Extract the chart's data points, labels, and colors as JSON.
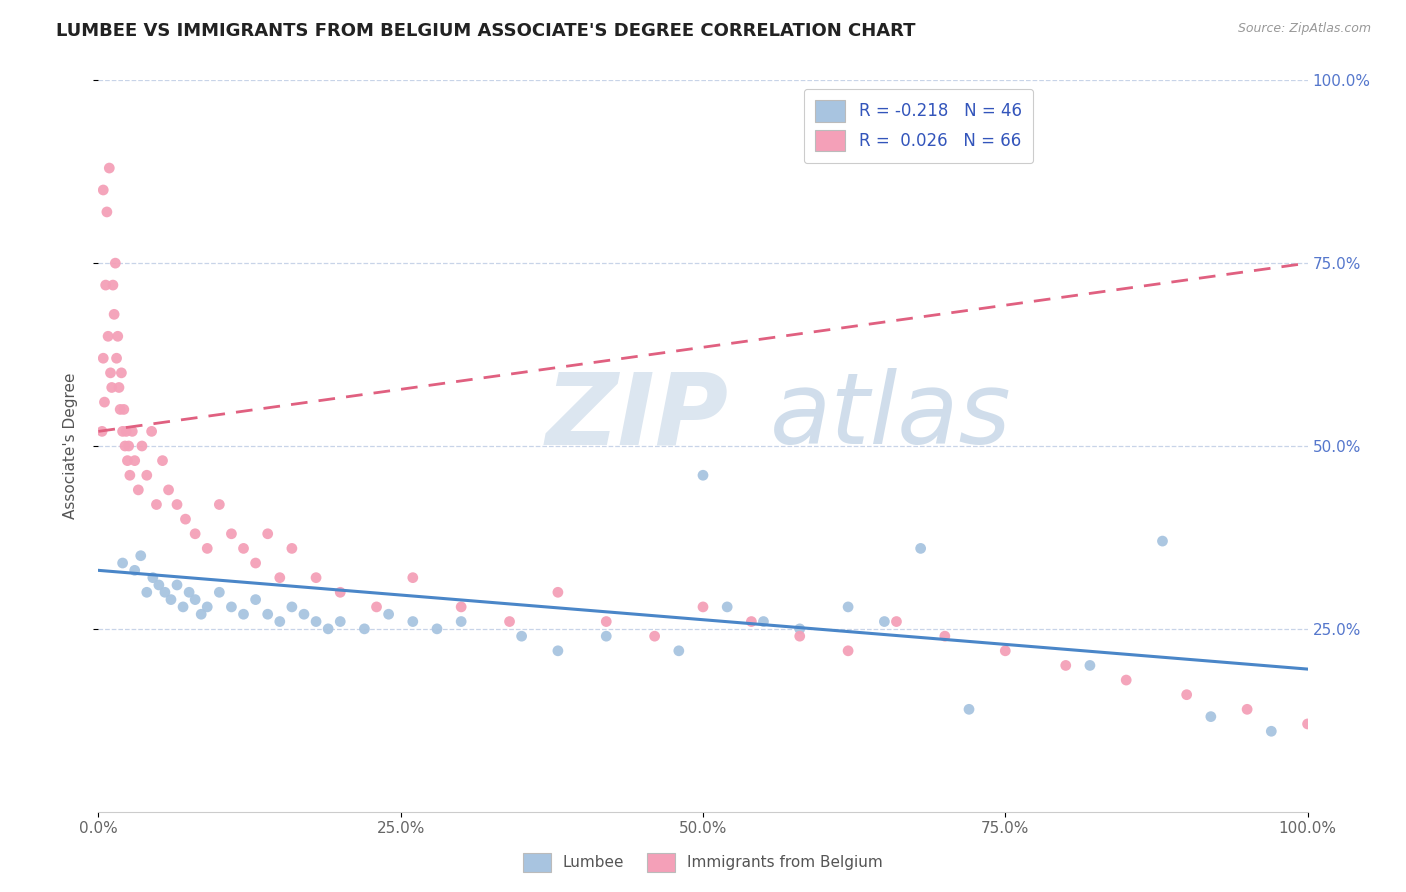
{
  "title": "LUMBEE VS IMMIGRANTS FROM BELGIUM ASSOCIATE'S DEGREE CORRELATION CHART",
  "source_text": "Source: ZipAtlas.com",
  "ylabel": "Associate's Degree",
  "legend_label_1": "Lumbee",
  "legend_label_2": "Immigrants from Belgium",
  "r1": -0.218,
  "n1": 46,
  "r2": 0.026,
  "n2": 66,
  "color_blue": "#a8c4e0",
  "color_pink": "#f4a0b8",
  "line_blue": "#4a86c8",
  "line_pink": "#e06080",
  "background_color": "#ffffff",
  "grid_color": "#c8d4e8",
  "blue_scatter_x": [
    0.02,
    0.03,
    0.035,
    0.04,
    0.045,
    0.05,
    0.055,
    0.06,
    0.065,
    0.07,
    0.075,
    0.08,
    0.085,
    0.09,
    0.1,
    0.11,
    0.12,
    0.13,
    0.14,
    0.15,
    0.16,
    0.17,
    0.18,
    0.19,
    0.2,
    0.22,
    0.24,
    0.26,
    0.28,
    0.3,
    0.35,
    0.38,
    0.42,
    0.48,
    0.5,
    0.52,
    0.55,
    0.58,
    0.62,
    0.65,
    0.68,
    0.72,
    0.82,
    0.88,
    0.92,
    0.97
  ],
  "blue_scatter_y": [
    0.34,
    0.33,
    0.35,
    0.3,
    0.32,
    0.31,
    0.3,
    0.29,
    0.31,
    0.28,
    0.3,
    0.29,
    0.27,
    0.28,
    0.3,
    0.28,
    0.27,
    0.29,
    0.27,
    0.26,
    0.28,
    0.27,
    0.26,
    0.25,
    0.26,
    0.25,
    0.27,
    0.26,
    0.25,
    0.26,
    0.24,
    0.22,
    0.24,
    0.22,
    0.46,
    0.28,
    0.26,
    0.25,
    0.28,
    0.26,
    0.36,
    0.14,
    0.2,
    0.37,
    0.13,
    0.11
  ],
  "pink_scatter_x": [
    0.003,
    0.004,
    0.005,
    0.006,
    0.007,
    0.008,
    0.009,
    0.01,
    0.011,
    0.012,
    0.013,
    0.014,
    0.015,
    0.016,
    0.017,
    0.018,
    0.019,
    0.02,
    0.021,
    0.022,
    0.023,
    0.024,
    0.025,
    0.026,
    0.028,
    0.03,
    0.033,
    0.036,
    0.04,
    0.044,
    0.048,
    0.053,
    0.058,
    0.065,
    0.072,
    0.08,
    0.09,
    0.1,
    0.11,
    0.12,
    0.13,
    0.14,
    0.15,
    0.16,
    0.18,
    0.2,
    0.23,
    0.26,
    0.3,
    0.34,
    0.38,
    0.42,
    0.46,
    0.5,
    0.54,
    0.58,
    0.62,
    0.66,
    0.7,
    0.75,
    0.8,
    0.85,
    0.9,
    0.95,
    1.0,
    0.004
  ],
  "pink_scatter_y": [
    0.52,
    0.62,
    0.56,
    0.72,
    0.82,
    0.65,
    0.88,
    0.6,
    0.58,
    0.72,
    0.68,
    0.75,
    0.62,
    0.65,
    0.58,
    0.55,
    0.6,
    0.52,
    0.55,
    0.5,
    0.52,
    0.48,
    0.5,
    0.46,
    0.52,
    0.48,
    0.44,
    0.5,
    0.46,
    0.52,
    0.42,
    0.48,
    0.44,
    0.42,
    0.4,
    0.38,
    0.36,
    0.42,
    0.38,
    0.36,
    0.34,
    0.38,
    0.32,
    0.36,
    0.32,
    0.3,
    0.28,
    0.32,
    0.28,
    0.26,
    0.3,
    0.26,
    0.24,
    0.28,
    0.26,
    0.24,
    0.22,
    0.26,
    0.24,
    0.22,
    0.2,
    0.18,
    0.16,
    0.14,
    0.12,
    0.85
  ],
  "blue_trend": [
    0.33,
    0.195
  ],
  "pink_trend": [
    0.52,
    0.75
  ],
  "xlim": [
    0.0,
    1.0
  ],
  "ylim": [
    0.0,
    1.0
  ],
  "xtick_vals": [
    0.0,
    0.25,
    0.5,
    0.75,
    1.0
  ],
  "xtick_labels": [
    "0.0%",
    "25.0%",
    "50.0%",
    "75.0%",
    "100.0%"
  ],
  "ytick_vals": [
    0.25,
    0.5,
    0.75,
    1.0
  ],
  "ytick_labels": [
    "25.0%",
    "50.0%",
    "75.0%",
    "100.0%"
  ],
  "title_fontsize": 13,
  "axis_label_fontsize": 11,
  "tick_fontsize": 11
}
